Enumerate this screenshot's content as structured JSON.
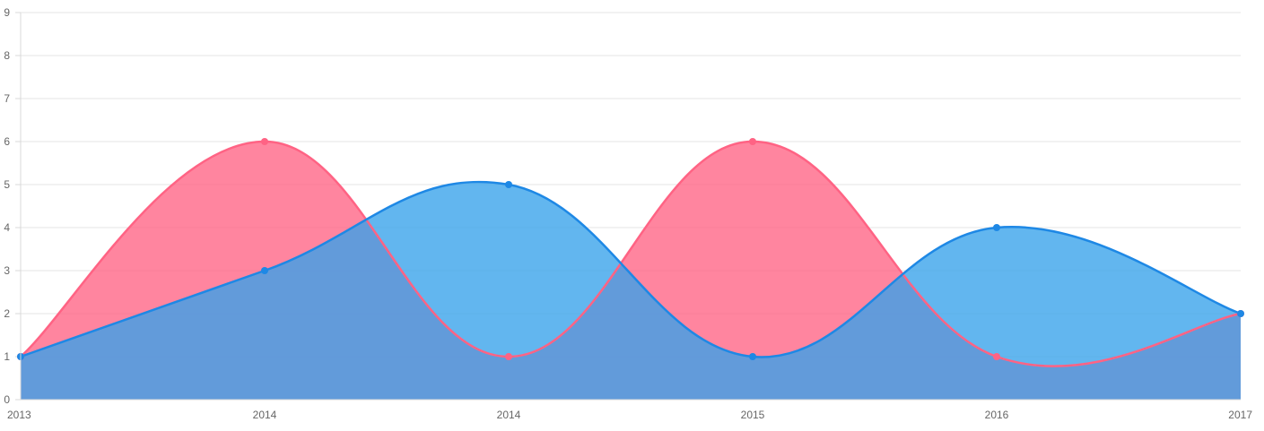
{
  "chart_data": {
    "type": "area",
    "title": "",
    "xlabel": "",
    "ylabel": "",
    "categories": [
      "2013",
      "2014",
      "2014",
      "2015",
      "2016",
      "2017"
    ],
    "ylim": [
      0,
      9
    ],
    "yticks": [
      0,
      1,
      2,
      3,
      4,
      5,
      6,
      7,
      8,
      9
    ],
    "grid": true,
    "legend": "none",
    "series": [
      {
        "values": [
          1,
          6,
          1,
          6,
          1,
          2
        ],
        "line_color": "#ff6384",
        "fill_color": "#ff6384"
      },
      {
        "values": [
          1,
          3,
          5,
          1,
          4,
          2
        ],
        "line_color": "#1e88e5",
        "fill_color": "#36a2eb"
      }
    ]
  }
}
